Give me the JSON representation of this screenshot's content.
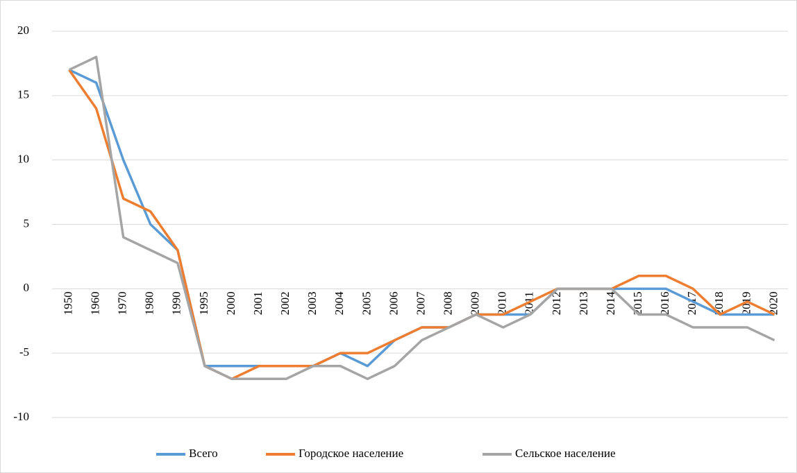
{
  "chart_data": {
    "type": "line",
    "categories": [
      "1950",
      "1960",
      "1970",
      "1980",
      "1990",
      "1995",
      "2000",
      "2001",
      "2002",
      "2003",
      "2004",
      "2005",
      "2006",
      "2007",
      "2008",
      "2009",
      "2010",
      "2011",
      "2012",
      "2013",
      "2014",
      "2015",
      "2016",
      "2017",
      "2018",
      "2019",
      "2020"
    ],
    "series": [
      {
        "name": "Всего",
        "color": "#5b9bd5",
        "values": [
          17,
          16,
          10,
          5,
          3,
          -6,
          -6,
          -6,
          -6,
          -6,
          -5,
          -6,
          -4,
          -3,
          -3,
          -2,
          -2,
          -2,
          0,
          0,
          0,
          0,
          0,
          -1,
          -2,
          -2,
          -2
        ]
      },
      {
        "name": "Городское население",
        "color": "#ed7d31",
        "values": [
          17,
          14,
          7,
          6,
          3,
          -6,
          -7,
          -6,
          -6,
          -6,
          -5,
          -5,
          -4,
          -3,
          -3,
          -2,
          -2,
          -1,
          0,
          0,
          0,
          1,
          1,
          0,
          -2,
          -1,
          -2
        ]
      },
      {
        "name": "Сельское население",
        "color": "#a5a5a5",
        "values": [
          17,
          18,
          4,
          3,
          2,
          -6,
          -7,
          -7,
          -7,
          -6,
          -6,
          -7,
          -6,
          -4,
          -3,
          -2,
          -3,
          -2,
          0,
          0,
          0,
          -2,
          -2,
          -3,
          -3,
          -3,
          -4
        ]
      }
    ],
    "ylim": [
      -10,
      20
    ],
    "yticks": [
      -10,
      -5,
      0,
      5,
      10,
      15,
      20
    ],
    "grid": true,
    "legend": "bottom"
  }
}
